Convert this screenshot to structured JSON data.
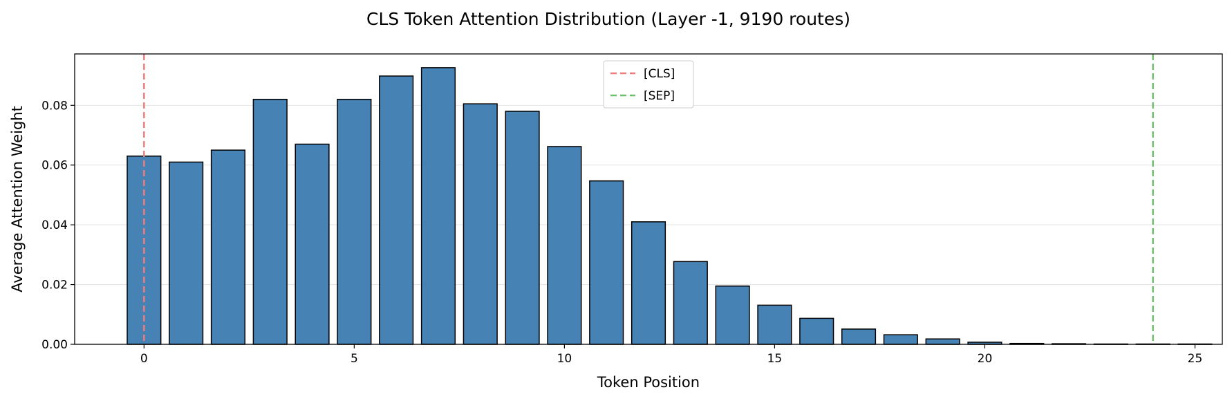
{
  "chart_data": {
    "type": "bar",
    "title": "CLS Token Attention Distribution (Layer -1, 9190 routes)",
    "xlabel": "Token Position",
    "ylabel": "Average Attention Weight",
    "x": [
      0,
      1,
      2,
      3,
      4,
      5,
      6,
      7,
      8,
      9,
      10,
      11,
      12,
      13,
      14,
      15,
      16,
      17,
      18,
      19,
      20,
      21,
      22,
      23,
      24,
      25
    ],
    "values": [
      0.063,
      0.061,
      0.065,
      0.082,
      0.067,
      0.082,
      0.0898,
      0.0926,
      0.0805,
      0.078,
      0.0662,
      0.0547,
      0.041,
      0.0277,
      0.0195,
      0.0131,
      0.0087,
      0.0051,
      0.0032,
      0.0018,
      0.0007,
      0.0003,
      0.0002,
      0.0001,
      0.0001,
      0.0001
    ],
    "xlim": [
      -1.65,
      25.65
    ],
    "ylim": [
      0,
      0.0972
    ],
    "xticks": [
      "0",
      "5",
      "10",
      "15",
      "20",
      "25"
    ],
    "yticks": [
      "0.00",
      "0.02",
      "0.04",
      "0.06",
      "0.08"
    ],
    "grid": "horizontal",
    "bar_color": "#4682b4",
    "bar_edge_color": "#000000",
    "reference_lines": [
      {
        "label": "[CLS]",
        "x": 0,
        "color": "#f07c7c",
        "style": "dashed"
      },
      {
        "label": "[SEP]",
        "x": 24,
        "color": "#6dbf6d",
        "style": "dashed"
      }
    ],
    "legend": "top-center"
  }
}
